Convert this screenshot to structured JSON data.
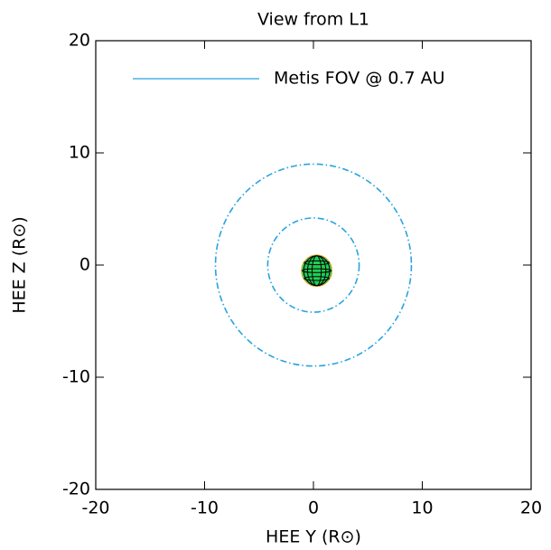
{
  "chart_data": {
    "type": "circles",
    "title": "View from L1",
    "x_label": "HEE Y (R⊙)",
    "y_label": "HEE Z (R⊙)",
    "xlim": [
      -20,
      20
    ],
    "ylim": [
      -20,
      20
    ],
    "xticks": [
      -20,
      -10,
      0,
      10,
      20
    ],
    "yticks": [
      -20,
      -10,
      0,
      10,
      20
    ],
    "series": [
      {
        "name": "Metis FOV @ 0.7 AU",
        "color": "#29a3e0",
        "values": [
          4.2,
          9.0
        ]
      }
    ],
    "objects": [
      {
        "color": "#22cc55",
        "x": 0.3,
        "y": -0.5,
        "r": 1.4
      }
    ],
    "legend": "upper-left"
  }
}
